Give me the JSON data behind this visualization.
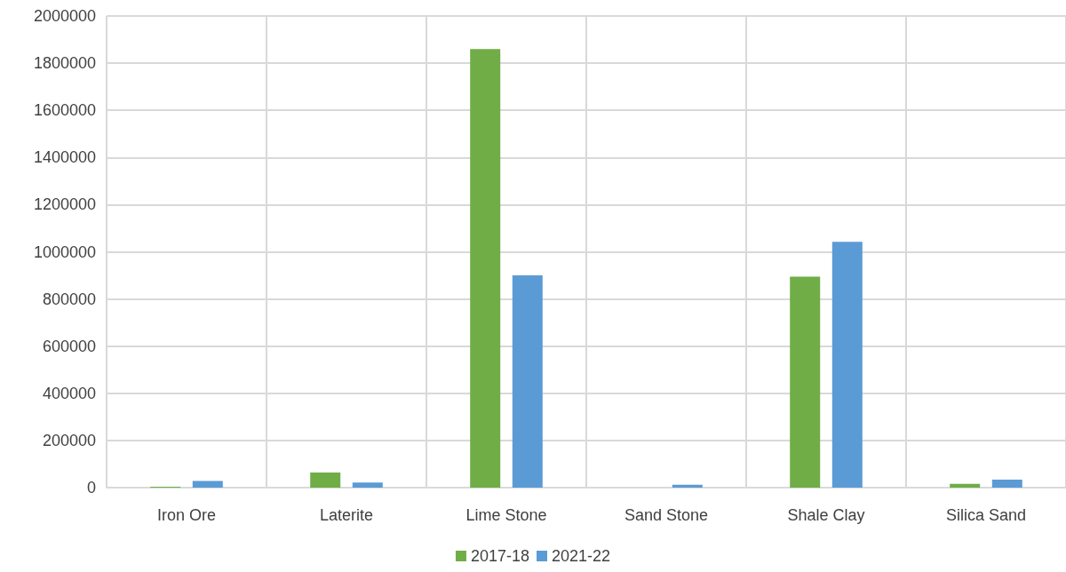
{
  "chart_data": {
    "type": "bar",
    "categories": [
      "Iron Ore",
      "Laterite",
      "Lime Stone",
      "Sand Stone",
      "Shale Clay",
      "Silica Sand"
    ],
    "series": [
      {
        "name": "2017-18",
        "color": "#70ad47",
        "values": [
          4000,
          64000,
          1860000,
          0,
          895000,
          16000
        ]
      },
      {
        "name": "2021-22",
        "color": "#5b9bd5",
        "values": [
          28000,
          22000,
          900000,
          12000,
          1042000,
          34000
        ]
      }
    ],
    "ylim": [
      0,
      2000000
    ],
    "yticks": [
      0,
      200000,
      400000,
      600000,
      800000,
      1000000,
      1200000,
      1400000,
      1600000,
      1800000,
      2000000
    ],
    "grid": true,
    "legend": "bottom"
  }
}
